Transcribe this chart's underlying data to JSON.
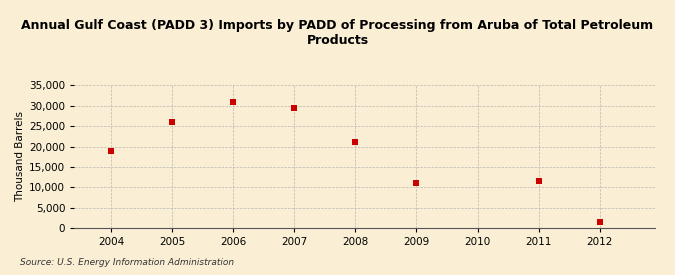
{
  "title": "Annual Gulf Coast (PADD 3) Imports by PADD of Processing from Aruba of Total Petroleum\nProducts",
  "ylabel": "Thousand Barrels",
  "source": "Source: U.S. Energy Information Administration",
  "x": [
    2004,
    2005,
    2006,
    2007,
    2008,
    2009,
    2011,
    2012
  ],
  "y": [
    19000,
    26000,
    31000,
    29500,
    21000,
    11000,
    11500,
    1500
  ],
  "xlim": [
    2003.4,
    2012.9
  ],
  "ylim": [
    0,
    35000
  ],
  "yticks": [
    0,
    5000,
    10000,
    15000,
    20000,
    25000,
    30000,
    35000
  ],
  "xticks": [
    2004,
    2005,
    2006,
    2007,
    2008,
    2009,
    2010,
    2011,
    2012
  ],
  "marker_color": "#cc0000",
  "marker": "s",
  "marker_size": 4,
  "bg_color": "#faefd4",
  "grid_color": "#aaaaaa",
  "title_fontsize": 9,
  "ylabel_fontsize": 7.5,
  "tick_fontsize": 7.5,
  "source_fontsize": 6.5
}
